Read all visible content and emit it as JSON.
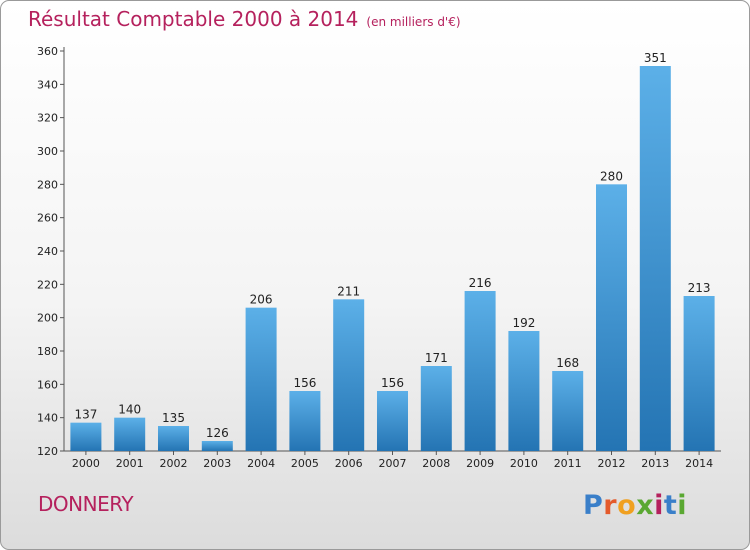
{
  "title": "Résultat Comptable 2000 à 2014",
  "unit_note": "(en milliers d'€)",
  "city": "DONNERY",
  "logo": {
    "letters": [
      "P",
      "r",
      "o",
      "x",
      "i",
      "t",
      "i"
    ],
    "colors": [
      "#3a7fc9",
      "#e45a2b",
      "#f0a020",
      "#5aa832",
      "#b5215d",
      "#3a7fc9",
      "#5aa832"
    ]
  },
  "colors": {
    "bar_top": "#5cb0e8",
    "bar_bottom": "#2474b3",
    "title": "#b5215d"
  },
  "chart_data": {
    "type": "bar",
    "categories": [
      "2000",
      "2001",
      "2002",
      "2003",
      "2004",
      "2005",
      "2006",
      "2007",
      "2008",
      "2009",
      "2010",
      "2011",
      "2012",
      "2013",
      "2014"
    ],
    "values": [
      137,
      140,
      135,
      126,
      206,
      156,
      211,
      156,
      171,
      216,
      192,
      168,
      280,
      351,
      213
    ],
    "ylim": [
      120,
      360
    ],
    "yticks": [
      120,
      140,
      160,
      180,
      200,
      220,
      240,
      260,
      280,
      300,
      320,
      340,
      360
    ],
    "grid": false
  }
}
